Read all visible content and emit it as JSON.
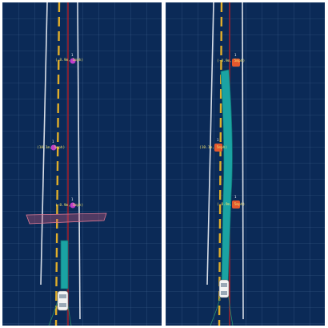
{
  "panels": [
    {
      "id": "left",
      "objects": [
        {
          "label": "(-8.9m, 5mph)",
          "id": "1"
        },
        {
          "label": "(10.1m, 5mph)",
          "id": "1"
        },
        {
          "label": "(-8.9m, 5mph)",
          "id": "1"
        }
      ]
    },
    {
      "id": "right",
      "objects": [
        {
          "label": "(-8.9m, 5mph)",
          "id": "1"
        },
        {
          "label": "(10.1m, 5mph)",
          "id": "1"
        },
        {
          "label": "(-8.9m, 5mph)",
          "id": "1"
        }
      ]
    }
  ],
  "colors": {
    "background": "#0b2a57",
    "grid": "#3d5f8c",
    "lane_white": "#d7dde6",
    "lane_yellow": "#e1ae2a",
    "route_red": "#a01f2c",
    "path_teal": "#1aa3a3",
    "obstacle_magenta": "#c13fc9",
    "obstacle_orange": "#e4582e",
    "label_yellow": "#f2e26a"
  }
}
